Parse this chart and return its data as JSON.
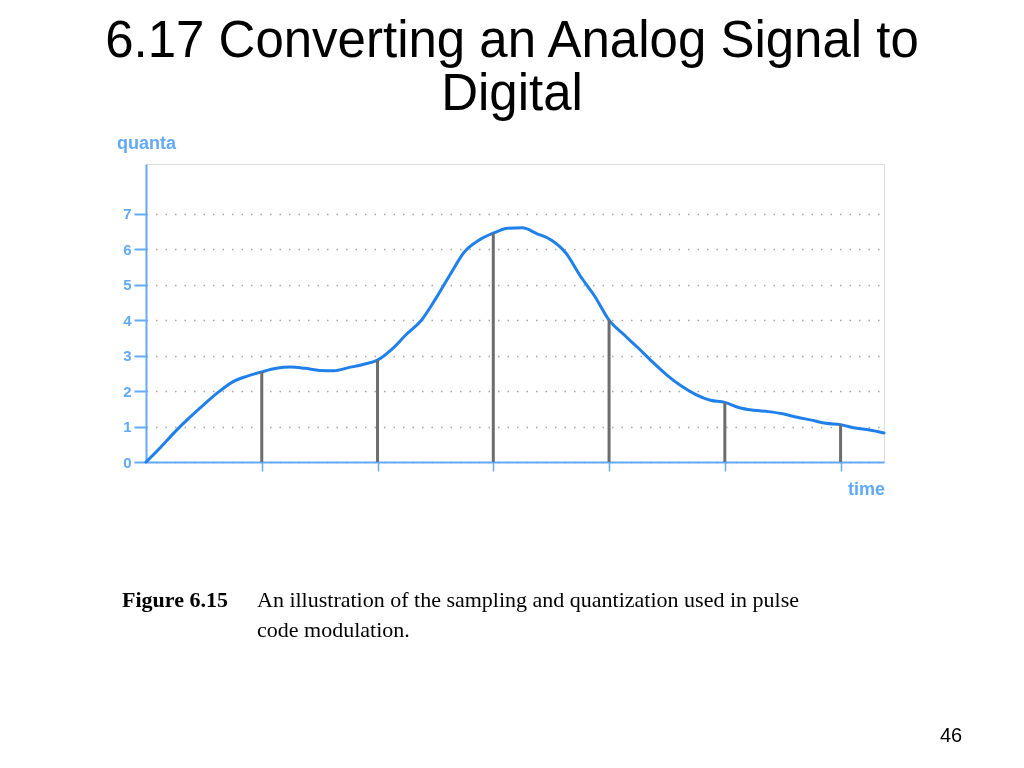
{
  "chart_data": {
    "type": "line",
    "title": "6.17  Converting an Analog Signal to Digital",
    "xlabel": "time",
    "ylabel": "quanta",
    "annotations": [
      "Figure 6.15 An illustration of the sampling and quantization used in pulse code modulation.",
      "46"
    ],
    "categories": [
      null,
      null,
      null,
      null,
      null,
      null,
      null,
      null,
      null,
      null,
      null,
      null,
      null,
      null,
      null,
      null,
      null,
      null,
      null,
      null,
      null,
      null,
      null,
      null,
      null,
      null,
      null,
      null,
      null,
      null,
      null,
      null,
      null,
      null,
      null,
      null,
      null,
      null,
      null,
      null,
      null,
      null,
      null,
      null,
      null,
      null,
      null,
      null,
      null,
      null,
      null,
      null
    ],
    "series": [
      {
        "color": "#1f80ec",
        "values": [
          0,
          0.41,
          0.85,
          1.25,
          1.62,
          1.97,
          2.26,
          2.42,
          2.54,
          2.64,
          2.68,
          2.64,
          2.58,
          2.57,
          2.66,
          2.75,
          2.87,
          3.18,
          3.6,
          3.98,
          4.59,
          5.27,
          5.92,
          6.25,
          6.45,
          6.59,
          6.6,
          6.44,
          6.26,
          5.9,
          5.25,
          4.68,
          4.0,
          3.6,
          3.22,
          2.82,
          2.45,
          2.14,
          1.9,
          1.74,
          1.68,
          1.53,
          1.46,
          1.42,
          1.36,
          1.26,
          1.18,
          1.09,
          1.05,
          0.96,
          0.9,
          0.82
        ]
      },
      {
        "type": "bar",
        "color": "#6d6d6d",
        "values": [
          null,
          null,
          null,
          null,
          null,
          null,
          null,
          null,
          2.54,
          null,
          null,
          null,
          null,
          null,
          null,
          null,
          2.87,
          null,
          null,
          null,
          null,
          null,
          null,
          null,
          6.45,
          null,
          null,
          null,
          null,
          null,
          null,
          null,
          4.0,
          null,
          null,
          null,
          null,
          null,
          null,
          null,
          1.68,
          null,
          null,
          null,
          null,
          null,
          null,
          null,
          1.05,
          null,
          null,
          null
        ]
      }
    ],
    "ylim": [
      0,
      8.4
    ],
    "yticks": [
      0,
      1,
      2,
      3,
      4,
      5,
      6,
      7
    ],
    "grid": "y",
    "tick_labels": "y"
  }
}
